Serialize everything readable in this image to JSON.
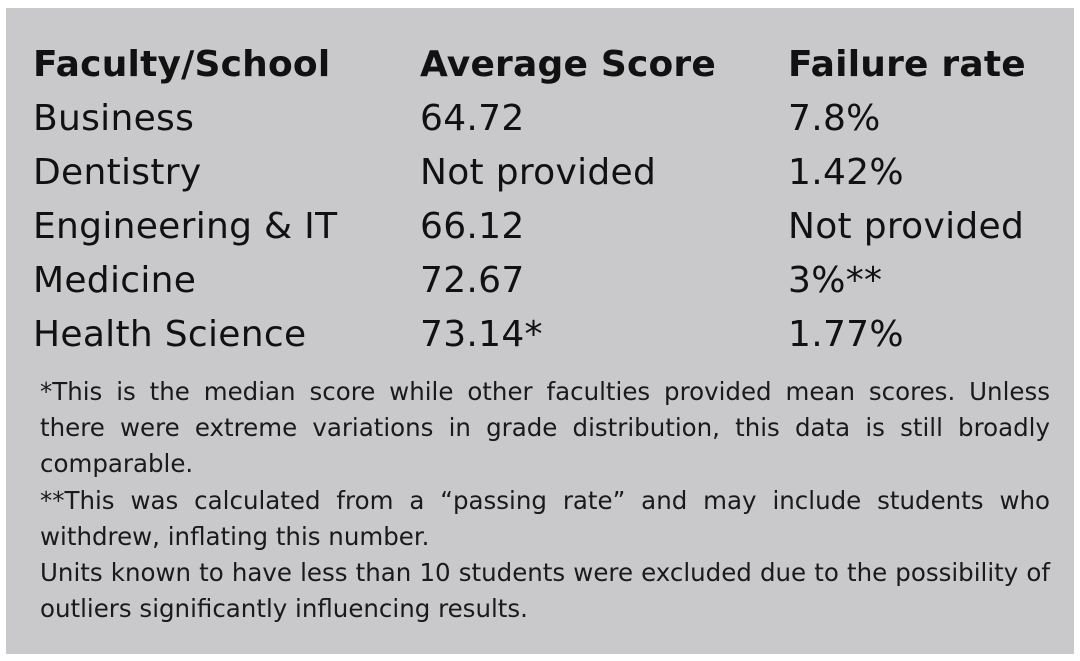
{
  "table": {
    "headers": [
      "Faculty/School",
      "Average Score",
      "Failure rate"
    ],
    "rows": [
      [
        "Business",
        "64.72",
        "7.8%"
      ],
      [
        "Dentistry",
        "Not provided",
        "1.42%"
      ],
      [
        "Engineering & IT",
        "66.12",
        "Not provided"
      ],
      [
        "Medicine",
        "72.67",
        "3%**"
      ],
      [
        "Health Science",
        "73.14*",
        "1.77%"
      ]
    ]
  },
  "notes": [
    "*This is the median score while other faculties provided mean scores. Unless there were extreme variations in grade distribution, this data is still broadly comparable.",
    "**This was calculated from a “passing rate” and may include students who withdrew, inflating this number.",
    "Units known to have less than 10 students were excluded due to the possibility of outliers significantly influencing results."
  ],
  "colors": {
    "panel_background": "#c9c9cb",
    "text": "#111111"
  }
}
